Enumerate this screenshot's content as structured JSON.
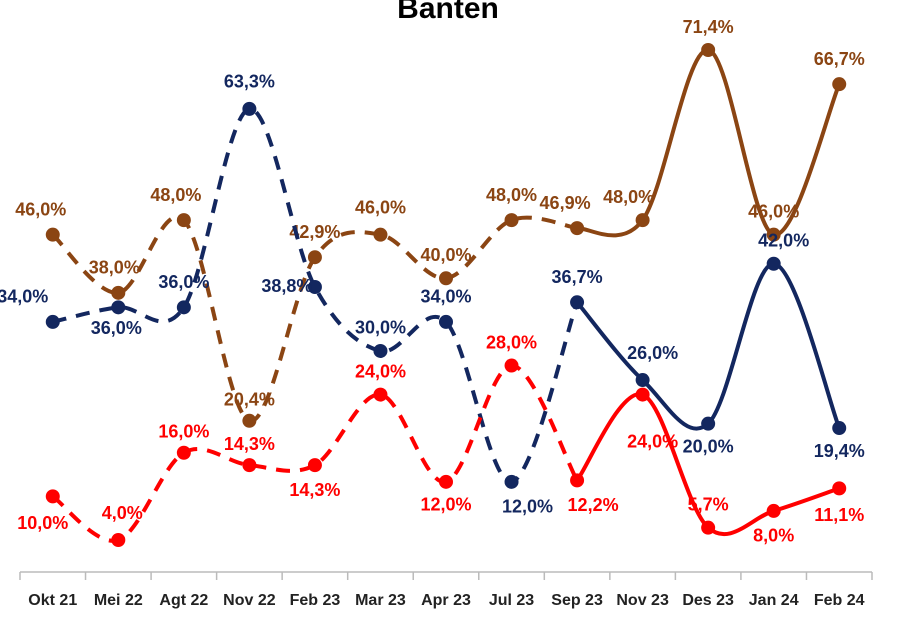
{
  "chart_data": {
    "type": "line",
    "title": "Banten",
    "categories": [
      "Okt 21",
      "Mei 22",
      "Agt 22",
      "Nov 22",
      "Feb 23",
      "Mar 23",
      "Apr 23",
      "Jul 23",
      "Sep 23",
      "Nov 23",
      "Des 23",
      "Jan 24",
      "Feb 24"
    ],
    "series": [
      {
        "name": "Brown",
        "color": "#8b4513",
        "values": [
          46.0,
          38.0,
          48.0,
          20.4,
          42.9,
          46.0,
          40.0,
          48.0,
          46.9,
          48.0,
          71.4,
          46.0,
          66.7
        ],
        "value_labels": [
          "46,0%",
          "38,0%",
          "48,0%",
          "20,4%",
          "42,9%",
          "46,0%",
          "40,0%",
          "48,0%",
          "46,9%",
          "48,0%",
          "71,4%",
          "46,0%",
          "66,7%"
        ]
      },
      {
        "name": "Navy",
        "color": "#13275f",
        "values": [
          34.0,
          36.0,
          36.0,
          63.3,
          38.8,
          30.0,
          34.0,
          12.0,
          36.7,
          26.0,
          20.0,
          42.0,
          19.4
        ],
        "value_labels": [
          "34,0%",
          "36,0%",
          "36,0%",
          "63,3%",
          "38,8%",
          "30,0%",
          "34,0%",
          "12,0%",
          "36,7%",
          "26,0%",
          "20,0%",
          "42,0%",
          "19,4%"
        ]
      },
      {
        "name": "Red",
        "color": "#ff0000",
        "values": [
          10.0,
          4.0,
          16.0,
          14.3,
          14.3,
          24.0,
          12.0,
          28.0,
          12.2,
          24.0,
          5.7,
          8.0,
          11.1
        ],
        "value_labels": [
          "10,0%",
          "4,0%",
          "16,0%",
          "14,3%",
          "14,3%",
          "24,0%",
          "12,0%",
          "28,0%",
          "12,2%",
          "24,0%",
          "5,7%",
          "8,0%",
          "11,1%"
        ]
      }
    ]
  }
}
